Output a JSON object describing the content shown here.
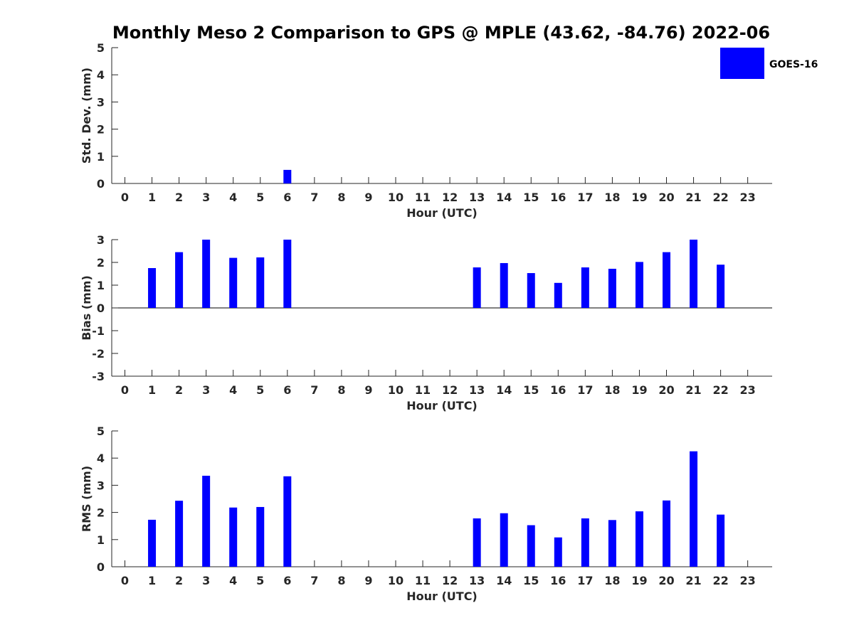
{
  "title": "Monthly Meso 2 Comparison to GPS @ MPLE (43.62, -84.76) 2022-06",
  "legend": {
    "label": "GOES-16",
    "color": "#0000ff"
  },
  "chart_data": [
    {
      "type": "bar",
      "ylabel": "Std. Dev. (mm)",
      "xlabel": "Hour (UTC)",
      "ylim": [
        0,
        5
      ],
      "yticks": [
        "0",
        "1",
        "2",
        "3",
        "4",
        "5"
      ],
      "categories": [
        "0",
        "1",
        "2",
        "3",
        "4",
        "5",
        "6",
        "7",
        "8",
        "9",
        "10",
        "11",
        "12",
        "13",
        "14",
        "15",
        "16",
        "17",
        "18",
        "19",
        "20",
        "21",
        "22",
        "23"
      ],
      "values": [
        null,
        null,
        null,
        null,
        null,
        null,
        0.5,
        null,
        null,
        null,
        null,
        null,
        null,
        null,
        null,
        null,
        null,
        null,
        null,
        null,
        null,
        null,
        null,
        null
      ],
      "series_name": "GOES-16",
      "color": "#0000ff"
    },
    {
      "type": "bar",
      "ylabel": "Bias (mm)",
      "xlabel": "Hour (UTC)",
      "ylim": [
        -3,
        3
      ],
      "yticks": [
        "-3",
        "-2",
        "-1",
        "0",
        "1",
        "2",
        "3"
      ],
      "categories": [
        "0",
        "1",
        "2",
        "3",
        "4",
        "5",
        "6",
        "7",
        "8",
        "9",
        "10",
        "11",
        "12",
        "13",
        "14",
        "15",
        "16",
        "17",
        "18",
        "19",
        "20",
        "21",
        "22",
        "23"
      ],
      "values": [
        null,
        1.75,
        2.45,
        3.0,
        2.2,
        2.22,
        3.0,
        null,
        null,
        null,
        null,
        null,
        null,
        1.78,
        1.97,
        1.53,
        1.1,
        1.78,
        1.72,
        2.02,
        2.45,
        3.0,
        1.9,
        null
      ],
      "series_name": "GOES-16",
      "color": "#0000ff"
    },
    {
      "type": "bar",
      "ylabel": "RMS (mm)",
      "xlabel": "Hour (UTC)",
      "ylim": [
        0,
        5
      ],
      "yticks": [
        "0",
        "1",
        "2",
        "3",
        "4",
        "5"
      ],
      "categories": [
        "0",
        "1",
        "2",
        "3",
        "4",
        "5",
        "6",
        "7",
        "8",
        "9",
        "10",
        "11",
        "12",
        "13",
        "14",
        "15",
        "16",
        "17",
        "18",
        "19",
        "20",
        "21",
        "22",
        "23"
      ],
      "values": [
        null,
        1.73,
        2.43,
        3.35,
        2.18,
        2.2,
        3.33,
        null,
        null,
        null,
        null,
        null,
        null,
        1.78,
        1.97,
        1.53,
        1.08,
        1.78,
        1.72,
        2.04,
        2.44,
        4.25,
        1.92,
        null
      ],
      "series_name": "GOES-16",
      "color": "#0000ff"
    }
  ]
}
